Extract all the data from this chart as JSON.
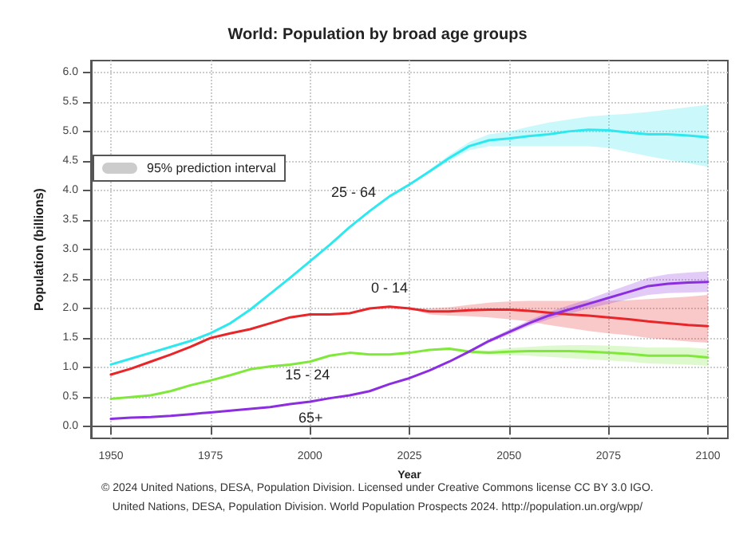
{
  "chart_data": {
    "type": "line",
    "title": "World: Population by broad age groups",
    "xlabel": "Year",
    "ylabel": "Population (billions)",
    "x": [
      1950,
      1955,
      1960,
      1965,
      1970,
      1975,
      1980,
      1985,
      1990,
      1995,
      2000,
      2005,
      2010,
      2015,
      2020,
      2025,
      2030,
      2035,
      2040,
      2045,
      2050,
      2055,
      2060,
      2065,
      2070,
      2075,
      2080,
      2085,
      2090,
      2095,
      2100
    ],
    "series": [
      {
        "name": "25 - 64",
        "color": "#2ee8f0",
        "values": [
          1.05,
          1.15,
          1.25,
          1.35,
          1.45,
          1.58,
          1.75,
          1.98,
          2.25,
          2.52,
          2.8,
          3.08,
          3.38,
          3.65,
          3.9,
          4.1,
          4.32,
          4.55,
          4.75,
          4.85,
          4.88,
          4.92,
          4.95,
          5.0,
          5.03,
          5.02,
          4.98,
          4.95,
          4.95,
          4.93,
          4.9
        ],
        "lower": [
          null,
          null,
          null,
          null,
          null,
          null,
          null,
          null,
          null,
          null,
          null,
          null,
          null,
          null,
          null,
          4.1,
          4.3,
          4.5,
          4.68,
          4.75,
          4.75,
          4.75,
          4.75,
          4.75,
          4.75,
          4.72,
          4.65,
          4.58,
          4.52,
          4.46,
          4.4
        ],
        "upper": [
          null,
          null,
          null,
          null,
          null,
          null,
          null,
          null,
          null,
          null,
          null,
          null,
          null,
          null,
          null,
          4.1,
          4.35,
          4.6,
          4.82,
          4.95,
          5.0,
          5.08,
          5.15,
          5.2,
          5.25,
          5.28,
          5.3,
          5.33,
          5.37,
          5.41,
          5.45
        ]
      },
      {
        "name": "0 - 14",
        "color": "#e8262a",
        "values": [
          0.88,
          0.98,
          1.1,
          1.22,
          1.35,
          1.5,
          1.58,
          1.65,
          1.75,
          1.85,
          1.9,
          1.9,
          1.92,
          2.0,
          2.03,
          2.0,
          1.95,
          1.95,
          1.97,
          1.98,
          1.98,
          1.96,
          1.93,
          1.9,
          1.88,
          1.85,
          1.82,
          1.78,
          1.75,
          1.72,
          1.7
        ],
        "lower": [
          null,
          null,
          null,
          null,
          null,
          null,
          null,
          null,
          null,
          null,
          null,
          null,
          null,
          null,
          null,
          2.0,
          1.9,
          1.88,
          1.87,
          1.85,
          1.82,
          1.78,
          1.72,
          1.67,
          1.62,
          1.58,
          1.55,
          1.5,
          1.47,
          1.44,
          1.42
        ],
        "upper": [
          null,
          null,
          null,
          null,
          null,
          null,
          null,
          null,
          null,
          null,
          null,
          null,
          null,
          null,
          null,
          2.0,
          2.0,
          2.02,
          2.06,
          2.1,
          2.12,
          2.13,
          2.13,
          2.13,
          2.13,
          2.13,
          2.14,
          2.16,
          2.18,
          2.2,
          2.23
        ]
      },
      {
        "name": "15 - 24",
        "color": "#7fe83a",
        "values": [
          0.47,
          0.5,
          0.53,
          0.6,
          0.7,
          0.78,
          0.87,
          0.97,
          1.02,
          1.05,
          1.1,
          1.2,
          1.25,
          1.22,
          1.22,
          1.25,
          1.3,
          1.32,
          1.27,
          1.25,
          1.27,
          1.28,
          1.28,
          1.28,
          1.27,
          1.25,
          1.23,
          1.2,
          1.2,
          1.2,
          1.17
        ],
        "lower": [
          null,
          null,
          null,
          null,
          null,
          null,
          null,
          null,
          null,
          null,
          null,
          null,
          null,
          null,
          null,
          1.25,
          1.29,
          1.3,
          1.24,
          1.21,
          1.21,
          1.2,
          1.18,
          1.16,
          1.14,
          1.12,
          1.1,
          1.07,
          1.06,
          1.05,
          1.03
        ],
        "upper": [
          null,
          null,
          null,
          null,
          null,
          null,
          null,
          null,
          null,
          null,
          null,
          null,
          null,
          null,
          null,
          1.25,
          1.31,
          1.34,
          1.3,
          1.29,
          1.33,
          1.35,
          1.37,
          1.38,
          1.38,
          1.37,
          1.36,
          1.34,
          1.34,
          1.34,
          1.32
        ]
      },
      {
        "name": "65+",
        "color": "#8b2ee0",
        "values": [
          0.13,
          0.15,
          0.16,
          0.18,
          0.21,
          0.24,
          0.27,
          0.3,
          0.33,
          0.38,
          0.42,
          0.48,
          0.53,
          0.6,
          0.72,
          0.82,
          0.95,
          1.1,
          1.27,
          1.45,
          1.6,
          1.75,
          1.88,
          1.98,
          2.08,
          2.18,
          2.28,
          2.38,
          2.42,
          2.44,
          2.45
        ],
        "lower": [
          null,
          null,
          null,
          null,
          null,
          null,
          null,
          null,
          null,
          null,
          null,
          null,
          null,
          null,
          null,
          0.82,
          0.95,
          1.09,
          1.25,
          1.42,
          1.56,
          1.7,
          1.82,
          1.91,
          2.0,
          2.08,
          2.16,
          2.23,
          2.26,
          2.27,
          2.28
        ],
        "upper": [
          null,
          null,
          null,
          null,
          null,
          null,
          null,
          null,
          null,
          null,
          null,
          null,
          null,
          null,
          null,
          0.82,
          0.96,
          1.11,
          1.29,
          1.48,
          1.64,
          1.8,
          1.94,
          2.05,
          2.16,
          2.28,
          2.4,
          2.52,
          2.58,
          2.61,
          2.63
        ]
      }
    ],
    "xlim": [
      1945,
      2105
    ],
    "xticks": [
      1950,
      1975,
      2000,
      2025,
      2050,
      2075,
      2100
    ],
    "ylim": [
      -0.2,
      6.2
    ],
    "yticks": [
      {
        "value": 0,
        "label": "0.0"
      },
      {
        "value": 0.5,
        "label": "0.5"
      },
      {
        "value": 1,
        "label": "1.0"
      },
      {
        "value": 1.5,
        "label": "1.5"
      },
      {
        "value": 2,
        "label": "2.0"
      },
      {
        "value": 2.5,
        "label": "2.5"
      },
      {
        "value": 3,
        "label": "3.0"
      },
      {
        "value": 3.5,
        "label": "3.5"
      },
      {
        "value": 4,
        "label": "4.0"
      },
      {
        "value": 4.5,
        "label": "4.5"
      },
      {
        "value": 5,
        "label": "5.0"
      },
      {
        "value": 5.5,
        "label": "5.5"
      },
      {
        "value": 6,
        "label": "6.0"
      }
    ],
    "grid": true,
    "marker": "none",
    "line_style": "solid",
    "annotations": [
      "95% prediction interval",
      "© 2024 United Nations, DESA, Population Division. Licensed under Creative Commons license CC BY 3.0 IGO.",
      "United Nations, DESA, Population Division. World Population Prospects 2024. http://population.un.org/wpp/"
    ]
  }
}
